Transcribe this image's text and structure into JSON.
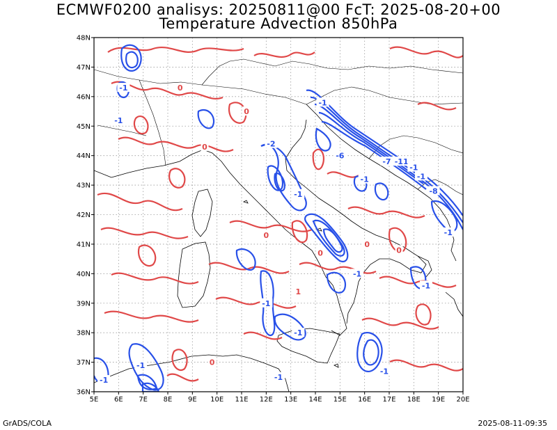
{
  "title_line1": "ECMWF0200 analisys: 20250811@00 FcT: 2025-08-20+00",
  "title_line2": "Temperature Advection 850hPa",
  "footer_left": "GrADS/COLA",
  "footer_right": "2025-08-11-09:35",
  "colors": {
    "positive": "#e04848",
    "negative": "#2850e8",
    "coast": "#000000",
    "grid": "#999999"
  },
  "map": {
    "lon_range": [
      5,
      20
    ],
    "lat_range": [
      36,
      48
    ],
    "lon_ticks": [
      "5E",
      "6E",
      "7E",
      "8E",
      "9E",
      "10E",
      "11E",
      "12E",
      "13E",
      "14E",
      "15E",
      "16E",
      "17E",
      "18E",
      "19E",
      "20E"
    ],
    "lat_ticks": [
      "36N",
      "37N",
      "38N",
      "39N",
      "40N",
      "41N",
      "42N",
      "43N",
      "44N",
      "45N",
      "46N",
      "47N",
      "48N"
    ]
  },
  "contour_labels": [
    {
      "text": "-1",
      "lon": 6.2,
      "lat": 46.3,
      "sign": "neg"
    },
    {
      "text": "-1",
      "lon": 6.0,
      "lat": 45.2,
      "sign": "neg"
    },
    {
      "text": "0",
      "lon": 11.2,
      "lat": 45.5,
      "sign": "pos"
    },
    {
      "text": "0",
      "lon": 8.5,
      "lat": 46.3,
      "sign": "pos"
    },
    {
      "text": "0",
      "lon": 9.5,
      "lat": 44.3,
      "sign": "pos"
    },
    {
      "text": "-1",
      "lon": 14.3,
      "lat": 45.8,
      "sign": "neg"
    },
    {
      "text": "-2",
      "lon": 12.2,
      "lat": 44.4,
      "sign": "neg"
    },
    {
      "text": "-6",
      "lon": 15.0,
      "lat": 44.0,
      "sign": "neg"
    },
    {
      "text": "-7",
      "lon": 16.9,
      "lat": 43.8,
      "sign": "neg"
    },
    {
      "text": "-11",
      "lon": 17.5,
      "lat": 43.8,
      "sign": "neg"
    },
    {
      "text": "-1",
      "lon": 18.0,
      "lat": 43.6,
      "sign": "neg"
    },
    {
      "text": "-1",
      "lon": 18.3,
      "lat": 43.3,
      "sign": "neg"
    },
    {
      "text": "-8",
      "lon": 18.8,
      "lat": 42.8,
      "sign": "neg"
    },
    {
      "text": "-1",
      "lon": 19.4,
      "lat": 41.4,
      "sign": "neg"
    },
    {
      "text": "-1",
      "lon": 13.3,
      "lat": 42.7,
      "sign": "neg"
    },
    {
      "text": "0",
      "lon": 16.1,
      "lat": 41.0,
      "sign": "pos"
    },
    {
      "text": "0",
      "lon": 12.0,
      "lat": 41.3,
      "sign": "pos"
    },
    {
      "text": "0",
      "lon": 14.2,
      "lat": 40.7,
      "sign": "pos"
    },
    {
      "text": "-1",
      "lon": 15.7,
      "lat": 40.0,
      "sign": "neg"
    },
    {
      "text": "-1",
      "lon": 18.5,
      "lat": 39.6,
      "sign": "neg"
    },
    {
      "text": "0",
      "lon": 17.4,
      "lat": 40.8,
      "sign": "pos"
    },
    {
      "text": "1",
      "lon": 13.3,
      "lat": 39.4,
      "sign": "pos"
    },
    {
      "text": "-1",
      "lon": 12.0,
      "lat": 39.0,
      "sign": "neg"
    },
    {
      "text": "-1",
      "lon": 13.3,
      "lat": 38.0,
      "sign": "neg"
    },
    {
      "text": "-1",
      "lon": 6.9,
      "lat": 36.9,
      "sign": "neg"
    },
    {
      "text": "-1",
      "lon": 16.8,
      "lat": 36.7,
      "sign": "neg"
    },
    {
      "text": "-1",
      "lon": 12.5,
      "lat": 36.5,
      "sign": "neg"
    },
    {
      "text": "0",
      "lon": 9.8,
      "lat": 37.0,
      "sign": "pos"
    },
    {
      "text": "-1",
      "lon": 5.4,
      "lat": 36.4,
      "sign": "neg"
    },
    {
      "text": "-1",
      "lon": 16.0,
      "lat": 43.2,
      "sign": "neg"
    }
  ]
}
